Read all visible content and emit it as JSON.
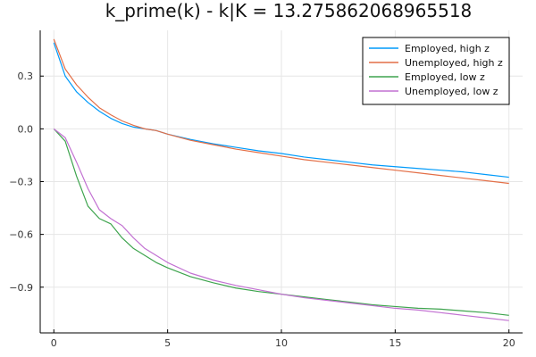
{
  "chart_data": {
    "type": "line",
    "title": "k_prime(k) - k|K = 13.275862068965518",
    "xlabel": "",
    "ylabel": "",
    "xlim": [
      -0.6,
      20.6
    ],
    "ylim": [
      -1.16,
      0.56
    ],
    "xticks": [
      0,
      5,
      10,
      15,
      20
    ],
    "yticks": [
      0.3,
      0.0,
      -0.3,
      -0.6,
      -0.9
    ],
    "xtick_labels": [
      "0",
      "5",
      "10",
      "15",
      "20"
    ],
    "ytick_labels": [
      "0.3",
      "0.0",
      "−0.3",
      "−0.6",
      "−0.9"
    ],
    "grid": true,
    "legend_position": "top-right",
    "series": [
      {
        "name": "Employed, high z",
        "color": "#009AFA",
        "x": [
          0,
          0.5,
          1,
          1.5,
          2,
          2.5,
          3,
          3.5,
          4,
          4.5,
          5,
          6,
          7,
          8,
          9,
          10,
          11,
          12,
          13,
          14,
          15,
          16,
          17,
          18,
          19,
          20
        ],
        "y": [
          0.49,
          0.3,
          0.21,
          0.15,
          0.1,
          0.06,
          0.03,
          0.01,
          0.0,
          -0.01,
          -0.03,
          -0.06,
          -0.085,
          -0.105,
          -0.125,
          -0.14,
          -0.16,
          -0.175,
          -0.19,
          -0.205,
          -0.215,
          -0.225,
          -0.235,
          -0.245,
          -0.26,
          -0.275
        ]
      },
      {
        "name": "Unemployed, high z",
        "color": "#E36F47",
        "x": [
          0,
          0.5,
          1,
          1.5,
          2,
          2.5,
          3,
          3.5,
          4,
          4.5,
          5,
          6,
          7,
          8,
          9,
          10,
          11,
          12,
          13,
          14,
          15,
          16,
          17,
          18,
          19,
          20
        ],
        "y": [
          0.51,
          0.34,
          0.25,
          0.18,
          0.12,
          0.08,
          0.045,
          0.02,
          0.0,
          -0.01,
          -0.03,
          -0.065,
          -0.09,
          -0.115,
          -0.135,
          -0.155,
          -0.175,
          -0.19,
          -0.205,
          -0.22,
          -0.235,
          -0.25,
          -0.265,
          -0.28,
          -0.295,
          -0.31
        ]
      },
      {
        "name": "Employed, low z",
        "color": "#3EA44E",
        "x": [
          0,
          0.5,
          1,
          1.5,
          2,
          2.5,
          3,
          3.5,
          4,
          4.5,
          5,
          6,
          7,
          8,
          9,
          10,
          11,
          12,
          13,
          14,
          15,
          16,
          17,
          18,
          19,
          20
        ],
        "y": [
          0.0,
          -0.07,
          -0.27,
          -0.44,
          -0.51,
          -0.54,
          -0.62,
          -0.68,
          -0.72,
          -0.76,
          -0.79,
          -0.84,
          -0.875,
          -0.905,
          -0.925,
          -0.94,
          -0.955,
          -0.97,
          -0.985,
          -1.0,
          -1.01,
          -1.02,
          -1.025,
          -1.035,
          -1.045,
          -1.06
        ]
      },
      {
        "name": "Unemployed, low z",
        "color": "#C271D2",
        "x": [
          0,
          0.5,
          1,
          1.5,
          2,
          2.5,
          3,
          3.5,
          4,
          4.5,
          5,
          6,
          7,
          8,
          9,
          10,
          11,
          12,
          13,
          14,
          15,
          16,
          17,
          18,
          19,
          20
        ],
        "y": [
          0.0,
          -0.05,
          -0.19,
          -0.34,
          -0.46,
          -0.51,
          -0.55,
          -0.62,
          -0.68,
          -0.72,
          -0.76,
          -0.82,
          -0.86,
          -0.89,
          -0.915,
          -0.94,
          -0.96,
          -0.975,
          -0.99,
          -1.005,
          -1.02,
          -1.03,
          -1.045,
          -1.06,
          -1.075,
          -1.09
        ]
      }
    ]
  }
}
